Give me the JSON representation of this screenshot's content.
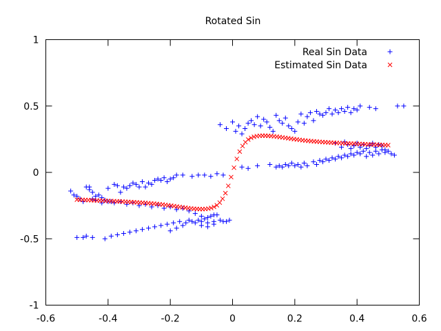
{
  "chart_data": {
    "type": "scatter",
    "title": "Rotated Sin",
    "xlabel": "",
    "ylabel": "",
    "xlim": [
      -0.6,
      0.6
    ],
    "ylim": [
      -1,
      1
    ],
    "x_ticks": [
      -0.6,
      -0.4,
      -0.2,
      0,
      0.2,
      0.4,
      0.6
    ],
    "x_tick_labels": [
      "-0.6",
      "-0.4",
      "-0.2",
      "0",
      "0.2",
      "0.4",
      "0.6"
    ],
    "y_ticks": [
      -1,
      -0.5,
      0,
      0.5,
      1
    ],
    "y_tick_labels": [
      "-1",
      "-0.5",
      "0",
      "0.5",
      "1"
    ],
    "legend_position": "top-right",
    "grid": false,
    "series": [
      {
        "name": "Real Sin Data",
        "marker": "plus",
        "color": "#0000ff",
        "points": [
          [
            -0.52,
            -0.14
          ],
          [
            -0.51,
            -0.17
          ],
          [
            -0.5,
            -0.18
          ],
          [
            -0.49,
            -0.2
          ],
          [
            -0.48,
            -0.22
          ],
          [
            -0.47,
            -0.11
          ],
          [
            -0.46,
            -0.13
          ],
          [
            -0.46,
            -0.11
          ],
          [
            -0.45,
            -0.2
          ],
          [
            -0.45,
            -0.15
          ],
          [
            -0.44,
            -0.18
          ],
          [
            -0.43,
            -0.17
          ],
          [
            -0.42,
            -0.19
          ],
          [
            -0.41,
            -0.21
          ],
          [
            -0.4,
            -0.12
          ],
          [
            -0.39,
            -0.22
          ],
          [
            -0.38,
            -0.09
          ],
          [
            -0.37,
            -0.1
          ],
          [
            -0.36,
            -0.15
          ],
          [
            -0.35,
            -0.11
          ],
          [
            -0.34,
            -0.12
          ],
          [
            -0.33,
            -0.1
          ],
          [
            -0.32,
            -0.08
          ],
          [
            -0.31,
            -0.09
          ],
          [
            -0.3,
            -0.11
          ],
          [
            -0.29,
            -0.07
          ],
          [
            -0.28,
            -0.11
          ],
          [
            -0.27,
            -0.08
          ],
          [
            -0.26,
            -0.09
          ],
          [
            -0.25,
            -0.06
          ],
          [
            -0.24,
            -0.05
          ],
          [
            -0.23,
            -0.06
          ],
          [
            -0.22,
            -0.04
          ],
          [
            -0.21,
            -0.07
          ],
          [
            -0.2,
            -0.05
          ],
          [
            -0.19,
            -0.04
          ],
          [
            -0.18,
            -0.02
          ],
          [
            -0.16,
            -0.02
          ],
          [
            -0.13,
            -0.03
          ],
          [
            -0.11,
            -0.02
          ],
          [
            -0.09,
            -0.02
          ],
          [
            -0.07,
            -0.03
          ],
          [
            -0.05,
            -0.01
          ],
          [
            -0.03,
            -0.02
          ],
          [
            -0.5,
            -0.49
          ],
          [
            -0.48,
            -0.49
          ],
          [
            -0.47,
            -0.48
          ],
          [
            -0.45,
            -0.49
          ],
          [
            -0.41,
            -0.5
          ],
          [
            -0.39,
            -0.48
          ],
          [
            -0.37,
            -0.47
          ],
          [
            -0.35,
            -0.46
          ],
          [
            -0.33,
            -0.45
          ],
          [
            -0.31,
            -0.44
          ],
          [
            -0.29,
            -0.43
          ],
          [
            -0.27,
            -0.42
          ],
          [
            -0.25,
            -0.41
          ],
          [
            -0.23,
            -0.4
          ],
          [
            -0.21,
            -0.39
          ],
          [
            -0.19,
            -0.38
          ],
          [
            -0.17,
            -0.37
          ],
          [
            -0.15,
            -0.38
          ],
          [
            -0.13,
            -0.37
          ],
          [
            -0.11,
            -0.36
          ],
          [
            -0.1,
            -0.4
          ],
          [
            -0.09,
            -0.35
          ],
          [
            -0.08,
            -0.38
          ],
          [
            -0.07,
            -0.33
          ],
          [
            -0.06,
            -0.37
          ],
          [
            -0.05,
            -0.32
          ],
          [
            -0.04,
            -0.36
          ],
          [
            -0.03,
            -0.37
          ],
          [
            -0.02,
            -0.37
          ],
          [
            -0.01,
            -0.36
          ],
          [
            -0.44,
            -0.21
          ],
          [
            -0.42,
            -0.23
          ],
          [
            -0.4,
            -0.22
          ],
          [
            -0.38,
            -0.23
          ],
          [
            -0.36,
            -0.22
          ],
          [
            -0.34,
            -0.24
          ],
          [
            -0.32,
            -0.23
          ],
          [
            -0.3,
            -0.25
          ],
          [
            -0.28,
            -0.24
          ],
          [
            -0.26,
            -0.26
          ],
          [
            -0.24,
            -0.25
          ],
          [
            -0.22,
            -0.27
          ],
          [
            -0.2,
            -0.26
          ],
          [
            -0.18,
            -0.28
          ],
          [
            -0.16,
            -0.27
          ],
          [
            -0.14,
            -0.29
          ],
          [
            -0.12,
            -0.31
          ],
          [
            -0.1,
            -0.33
          ],
          [
            -0.08,
            -0.34
          ],
          [
            -0.06,
            -0.32
          ],
          [
            -0.14,
            -0.36
          ],
          [
            -0.12,
            -0.38
          ],
          [
            -0.1,
            -0.37
          ],
          [
            -0.08,
            -0.41
          ],
          [
            -0.06,
            -0.39
          ],
          [
            -0.16,
            -0.4
          ],
          [
            -0.18,
            -0.42
          ],
          [
            -0.2,
            -0.44
          ],
          [
            -0.04,
            0.36
          ],
          [
            -0.02,
            0.33
          ],
          [
            0.0,
            0.38
          ],
          [
            0.01,
            0.31
          ],
          [
            0.02,
            0.35
          ],
          [
            0.03,
            0.29
          ],
          [
            0.04,
            0.33
          ],
          [
            0.05,
            0.37
          ],
          [
            0.06,
            0.39
          ],
          [
            0.07,
            0.36
          ],
          [
            0.08,
            0.42
          ],
          [
            0.09,
            0.35
          ],
          [
            0.1,
            0.4
          ],
          [
            0.11,
            0.38
          ],
          [
            0.12,
            0.34
          ],
          [
            0.13,
            0.31
          ],
          [
            0.14,
            0.43
          ],
          [
            0.15,
            0.39
          ],
          [
            0.16,
            0.37
          ],
          [
            0.17,
            0.41
          ],
          [
            0.18,
            0.35
          ],
          [
            0.19,
            0.33
          ],
          [
            0.2,
            0.31
          ],
          [
            0.21,
            0.38
          ],
          [
            0.22,
            0.44
          ],
          [
            0.23,
            0.37
          ],
          [
            0.24,
            0.42
          ],
          [
            0.25,
            0.45
          ],
          [
            0.26,
            0.39
          ],
          [
            0.27,
            0.46
          ],
          [
            0.28,
            0.44
          ],
          [
            0.29,
            0.43
          ],
          [
            0.3,
            0.45
          ],
          [
            0.31,
            0.48
          ],
          [
            0.32,
            0.44
          ],
          [
            0.33,
            0.47
          ],
          [
            0.34,
            0.45
          ],
          [
            0.35,
            0.48
          ],
          [
            0.36,
            0.46
          ],
          [
            0.37,
            0.49
          ],
          [
            0.38,
            0.45
          ],
          [
            0.39,
            0.48
          ],
          [
            0.4,
            0.47
          ],
          [
            0.41,
            0.5
          ],
          [
            0.44,
            0.49
          ],
          [
            0.46,
            0.48
          ],
          [
            0.53,
            0.5
          ],
          [
            0.55,
            0.5
          ],
          [
            0.03,
            0.04
          ],
          [
            0.05,
            0.03
          ],
          [
            0.08,
            0.05
          ],
          [
            0.12,
            0.06
          ],
          [
            0.14,
            0.04
          ],
          [
            0.15,
            0.05
          ],
          [
            0.16,
            0.04
          ],
          [
            0.17,
            0.06
          ],
          [
            0.18,
            0.05
          ],
          [
            0.19,
            0.07
          ],
          [
            0.2,
            0.05
          ],
          [
            0.21,
            0.06
          ],
          [
            0.22,
            0.04
          ],
          [
            0.23,
            0.07
          ],
          [
            0.24,
            0.05
          ],
          [
            0.26,
            0.08
          ],
          [
            0.27,
            0.06
          ],
          [
            0.28,
            0.09
          ],
          [
            0.29,
            0.08
          ],
          [
            0.3,
            0.1
          ],
          [
            0.31,
            0.09
          ],
          [
            0.32,
            0.11
          ],
          [
            0.33,
            0.1
          ],
          [
            0.34,
            0.12
          ],
          [
            0.35,
            0.11
          ],
          [
            0.36,
            0.13
          ],
          [
            0.37,
            0.12
          ],
          [
            0.38,
            0.14
          ],
          [
            0.39,
            0.13
          ],
          [
            0.4,
            0.15
          ],
          [
            0.41,
            0.14
          ],
          [
            0.42,
            0.16
          ],
          [
            0.43,
            0.12
          ],
          [
            0.44,
            0.15
          ],
          [
            0.45,
            0.13
          ],
          [
            0.46,
            0.16
          ],
          [
            0.47,
            0.14
          ],
          [
            0.48,
            0.17
          ],
          [
            0.49,
            0.15
          ],
          [
            0.5,
            0.16
          ],
          [
            0.51,
            0.14
          ],
          [
            0.52,
            0.13
          ],
          [
            0.33,
            0.22
          ],
          [
            0.35,
            0.19
          ],
          [
            0.36,
            0.23
          ],
          [
            0.37,
            0.21
          ],
          [
            0.38,
            0.18
          ],
          [
            0.39,
            0.2
          ],
          [
            0.4,
            0.22
          ],
          [
            0.41,
            0.19
          ],
          [
            0.42,
            0.21
          ],
          [
            0.43,
            0.18
          ],
          [
            0.44,
            0.2
          ],
          [
            0.45,
            0.22
          ],
          [
            0.46,
            0.19
          ],
          [
            0.47,
            0.21
          ],
          [
            0.48,
            0.2
          ],
          [
            0.49,
            0.17
          ]
        ]
      },
      {
        "name": "Estimated Sin Data",
        "marker": "cross",
        "color": "#ff0000",
        "curve": {
          "formula": "y = 1.5x·exp(-55x²) + 0.16·tanh(40x) - 0.05·x·|x|/|x| scaled",
          "x_from": -0.5,
          "x_to": 0.5,
          "count": 110
        }
      }
    ]
  }
}
